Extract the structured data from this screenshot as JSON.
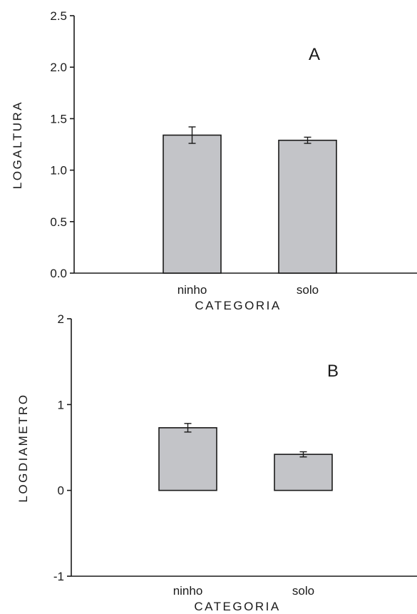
{
  "colors": {
    "bar_fill": "#c3c4c8",
    "bar_stroke": "#1a1a1a",
    "axis": "#1a1a1a",
    "background": "#ffffff"
  },
  "chart_data": [
    {
      "type": "bar",
      "panel_label": "A",
      "categories": [
        "ninho",
        "solo"
      ],
      "values": [
        1.34,
        1.29
      ],
      "error": [
        0.08,
        0.03
      ],
      "xlabel": "CATEGORIA",
      "ylabel": "LOGALTURA",
      "ylim": [
        0,
        2.5
      ],
      "yticks": [
        0.0,
        0.5,
        1.0,
        1.5,
        2.0,
        2.5
      ],
      "ytick_labels": [
        "0.0",
        "0.5",
        "1.0",
        "1.5",
        "2.0",
        "2.5"
      ],
      "grid": false,
      "legend": "none"
    },
    {
      "type": "bar",
      "panel_label": "B",
      "categories": [
        "ninho",
        "solo"
      ],
      "values": [
        0.73,
        0.42
      ],
      "error": [
        0.05,
        0.03
      ],
      "xlabel": "CATEGORIA",
      "ylabel": "LOGDIAMETRO",
      "ylim": [
        -1,
        2
      ],
      "yticks": [
        -1,
        0,
        1,
        2
      ],
      "ytick_labels": [
        "-1",
        "0",
        "1",
        "2"
      ],
      "grid": false,
      "legend": "none"
    }
  ]
}
